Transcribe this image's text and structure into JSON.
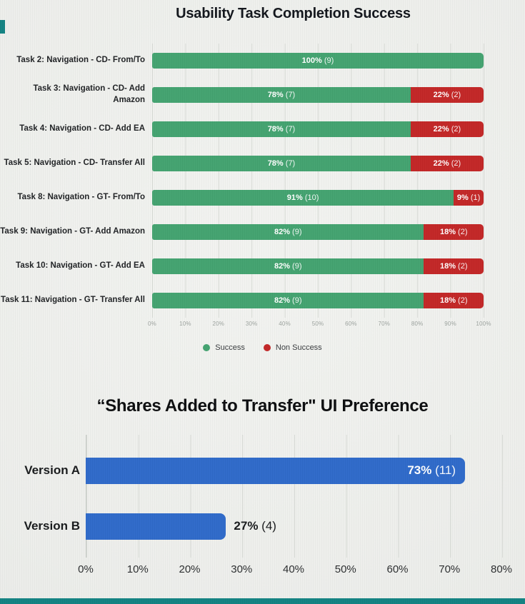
{
  "page": {
    "background": "#ebece9",
    "accent_color": "#0d7f7f"
  },
  "chart_data": [
    {
      "type": "bar",
      "orientation": "horizontal",
      "stacked": true,
      "grid": true,
      "title": "Usability Task Completion Success",
      "categories": [
        "Task 2: Navigation - CD- From/To",
        "Task 3: Navigation - CD- Add Amazon",
        "Task 4: Navigation - CD- Add EA",
        "Task 5: Navigation - CD- Transfer All",
        "Task 8: Navigation - GT- From/To",
        "Task 9: Navigation - GT- Add Amazon",
        "Task 10: Navigation - GT- Add EA",
        "Task 11: Navigation - GT- Transfer All"
      ],
      "series": [
        {
          "name": "Success",
          "color": "#3fa06c",
          "values": [
            100,
            78,
            78,
            78,
            91,
            82,
            82,
            82
          ],
          "counts": [
            9,
            7,
            7,
            7,
            10,
            9,
            9,
            9
          ]
        },
        {
          "name": "Non Success",
          "color": "#c12121",
          "values": [
            0,
            22,
            22,
            22,
            9,
            18,
            18,
            18
          ],
          "counts": [
            0,
            2,
            2,
            2,
            1,
            2,
            2,
            2
          ]
        }
      ],
      "bar_labels_success": [
        "100% (9)",
        "78% (7)",
        "78% (7)",
        "78% (7)",
        "91% (10)",
        "82% (9)",
        "82% (9)",
        "82% (9)"
      ],
      "bar_labels_non_success": [
        "",
        "22% (2)",
        "22% (2)",
        "22% (2)",
        "9% (1)",
        "18% (2)",
        "18% (2)",
        "18% (2)"
      ],
      "xlim": [
        0,
        100
      ],
      "xticks": [
        "0%",
        "10%",
        "20%",
        "30%",
        "40%",
        "50%",
        "60%",
        "70%",
        "80%",
        "90%",
        "100%"
      ],
      "legend_position": "bottom"
    },
    {
      "type": "bar",
      "orientation": "horizontal",
      "stacked": false,
      "grid": true,
      "title": "“Shares Added to Transfer\" UI Preference",
      "categories": [
        "Version A",
        "Version B"
      ],
      "values": [
        73,
        27
      ],
      "counts": [
        11,
        4
      ],
      "bar_labels": [
        "73% (11)",
        "27% (4)"
      ],
      "bar_color": "#2a66c8",
      "xlim": [
        0,
        80
      ],
      "xticks": [
        "0%",
        "10%",
        "20%",
        "30%",
        "40%",
        "50%",
        "60%",
        "70%",
        "80%"
      ]
    }
  ]
}
